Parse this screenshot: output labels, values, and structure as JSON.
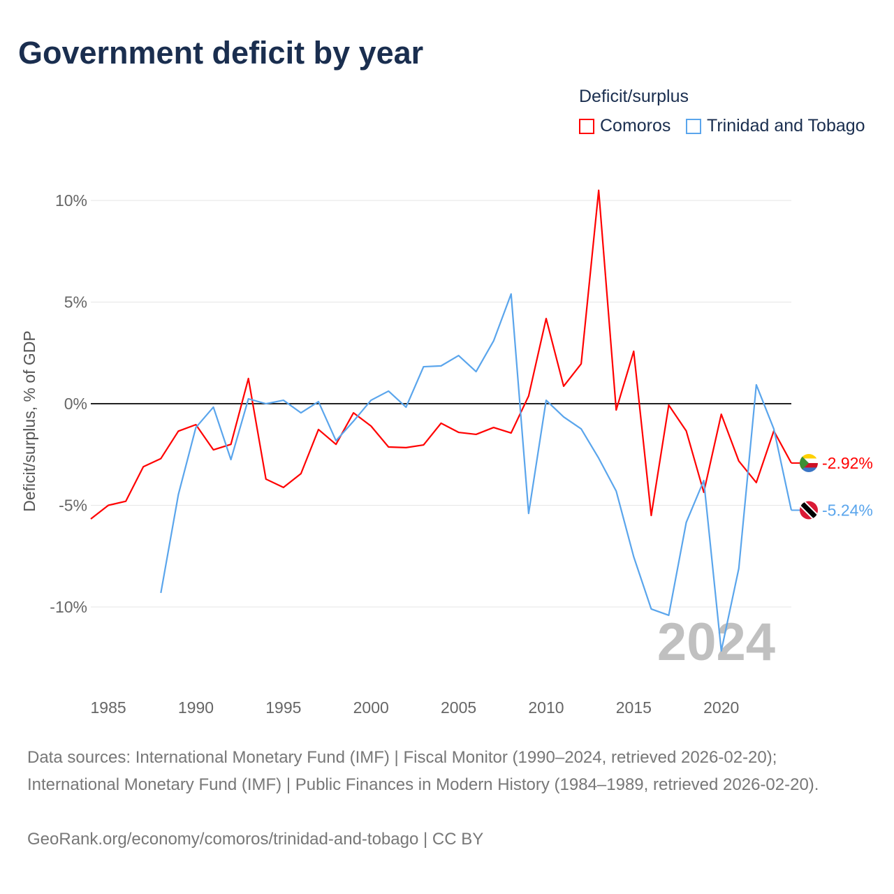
{
  "title": "Government deficit by year",
  "legend": {
    "title": "Deficit/surplus",
    "items": [
      {
        "label": "Comoros",
        "color": "#ff0000"
      },
      {
        "label": "Trinidad and Tobago",
        "color": "#5aa5ec"
      }
    ]
  },
  "year_watermark": "2024",
  "footer": {
    "sources": "Data sources: International Monetary Fund (IMF) | Fiscal Monitor (1990–2024, retrieved 2026-02-20); International Monetary Fund (IMF) | Public Finances in Modern History (1984–1989, retrieved 2026-02-20).",
    "credit": "GeoRank.org/economy/comoros/trinidad-and-tobago | CC BY"
  },
  "chart_data": {
    "type": "line",
    "title": "Government deficit by year",
    "xlabel": "",
    "ylabel": "Deficit/surplus, % of GDP",
    "xlim": [
      1984,
      2024
    ],
    "ylim": [
      -13.5,
      11
    ],
    "x_ticks": [
      "1985",
      "1990",
      "1995",
      "2000",
      "2005",
      "2010",
      "2015",
      "2020"
    ],
    "y_ticks": [
      {
        "v": 10,
        "label": "10%"
      },
      {
        "v": 5,
        "label": "5%"
      },
      {
        "v": 0,
        "label": "0%"
      },
      {
        "v": -5,
        "label": "-5%"
      },
      {
        "v": -10,
        "label": "-10%"
      }
    ],
    "grid": true,
    "series": [
      {
        "name": "Comoros",
        "color": "#ff0000",
        "start_year": 1984,
        "end_label": "-2.92%",
        "flag": "comoros",
        "values": [
          -5.67,
          -5.0,
          -4.8,
          -3.1,
          -2.7,
          -1.35,
          -1.03,
          -2.27,
          -2.0,
          1.24,
          -3.71,
          -4.12,
          -3.44,
          -1.27,
          -2.0,
          -0.45,
          -1.1,
          -2.13,
          -2.16,
          -2.03,
          -0.96,
          -1.41,
          -1.51,
          -1.17,
          -1.44,
          0.38,
          4.19,
          0.86,
          1.96,
          10.5,
          -0.31,
          2.58,
          -5.5,
          -0.07,
          -1.34,
          -4.36,
          -0.52,
          -2.82,
          -3.88,
          -1.34,
          -2.92
        ]
      },
      {
        "name": "Trinidad and Tobago",
        "color": "#5aa5ec",
        "start_year": 1988,
        "end_label": "-5.24%",
        "flag": "trinidad",
        "values": [
          -9.31,
          -4.47,
          -1.17,
          -0.17,
          -2.75,
          0.24,
          0.0,
          0.17,
          -0.45,
          0.1,
          -1.82,
          -0.86,
          0.17,
          0.62,
          -0.17,
          1.82,
          1.86,
          2.37,
          1.58,
          3.09,
          5.4,
          -5.4,
          0.17,
          -0.65,
          -1.24,
          -2.68,
          -4.3,
          -7.53,
          -10.1,
          -10.41,
          -5.84,
          -3.78,
          -12.16,
          -8.11,
          0.93,
          -1.24,
          -5.24
        ]
      }
    ]
  }
}
